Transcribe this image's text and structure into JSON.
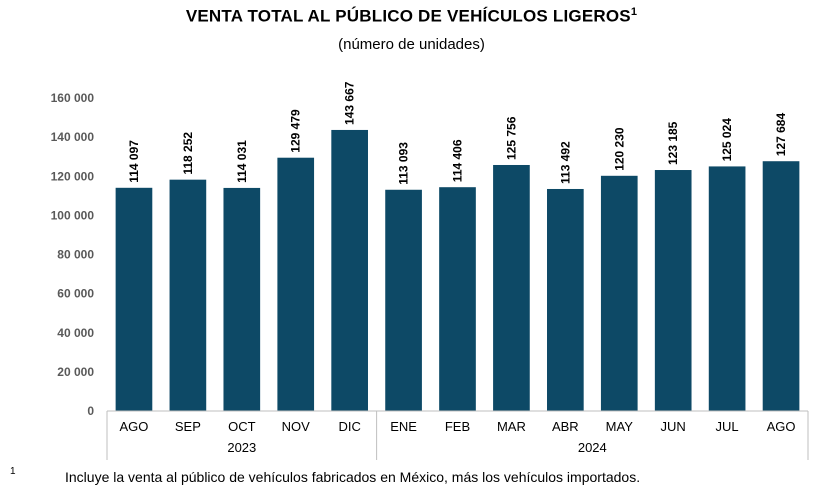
{
  "chart_data": {
    "type": "bar",
    "title": "VENTA TOTAL AL PÚBLICO DE VEHÍCULOS LIGEROS",
    "title_superscript": "1",
    "subtitle": "(número de unidades)",
    "categories": [
      "AGO",
      "SEP",
      "OCT",
      "NOV",
      "DIC",
      "ENE",
      "FEB",
      "MAR",
      "ABR",
      "MAY",
      "JUN",
      "JUL",
      "AGO"
    ],
    "values": [
      114097,
      118252,
      114031,
      129479,
      143667,
      113093,
      114406,
      125756,
      113492,
      120230,
      123185,
      125024,
      127684
    ],
    "data_labels": [
      "114 097",
      "118 252",
      "114 031",
      "129 479",
      "143 667",
      "113 093",
      "114 406",
      "125 756",
      "113 492",
      "120 230",
      "123 185",
      "125 024",
      "127 684"
    ],
    "year_groups": [
      {
        "label": "2023",
        "start": 0,
        "end": 4
      },
      {
        "label": "2024",
        "start": 5,
        "end": 12
      }
    ],
    "ylim": [
      0,
      160000
    ],
    "yticks": [
      0,
      20000,
      40000,
      60000,
      80000,
      100000,
      120000,
      140000,
      160000
    ],
    "ytick_labels": [
      "0",
      "20 000",
      "40 000",
      "60 000",
      "80 000",
      "100 000",
      "120 000",
      "140 000",
      "160 000"
    ],
    "bar_color": "#0d4966",
    "xlabel": "",
    "ylabel": ""
  },
  "footnote": {
    "mark": "1",
    "text": "Incluye la venta al público de vehículos fabricados en México, más los vehículos importados."
  }
}
